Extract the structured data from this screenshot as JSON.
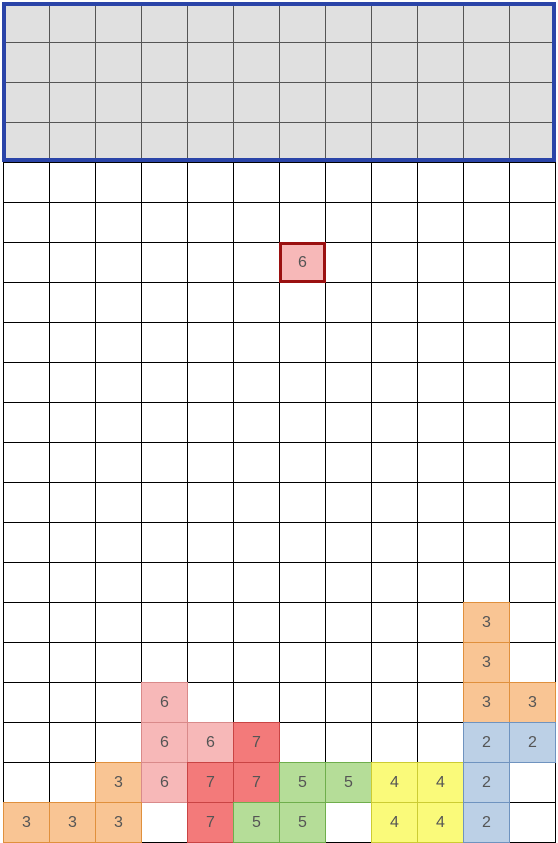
{
  "board": {
    "cols": 12,
    "rows": 21,
    "spawn_rows": 4,
    "colors": {
      "spawn_fill": "#e0e0e0",
      "spawn_border": "#2a44a8",
      "grid_line": "#000000",
      "active_border": "#9a1010"
    },
    "piece_colors": {
      "2": {
        "fill": "#bcd0e6",
        "border": "#6f93bf"
      },
      "3": {
        "fill": "#f9c594",
        "border": "#e0903d"
      },
      "4": {
        "fill": "#fafa7a",
        "border": "#cccc33"
      },
      "5": {
        "fill": "#b5dd98",
        "border": "#6fae4c"
      },
      "6": {
        "fill": "#f7b8b8",
        "border": "#d98a8a"
      },
      "7": {
        "fill": "#f37a7a",
        "border": "#c94444"
      }
    },
    "active_piece": {
      "value": "6",
      "cells": [
        [
          6,
          6
        ]
      ]
    },
    "cells": [
      {
        "col": 10,
        "row": 15,
        "value": "3"
      },
      {
        "col": 10,
        "row": 16,
        "value": "3"
      },
      {
        "col": 10,
        "row": 17,
        "value": "3"
      },
      {
        "col": 11,
        "row": 17,
        "value": "3"
      },
      {
        "col": 3,
        "row": 17,
        "value": "6"
      },
      {
        "col": 3,
        "row": 18,
        "value": "6"
      },
      {
        "col": 4,
        "row": 18,
        "value": "6"
      },
      {
        "col": 5,
        "row": 18,
        "value": "7"
      },
      {
        "col": 10,
        "row": 18,
        "value": "2"
      },
      {
        "col": 11,
        "row": 18,
        "value": "2"
      },
      {
        "col": 2,
        "row": 19,
        "value": "3"
      },
      {
        "col": 3,
        "row": 19,
        "value": "6"
      },
      {
        "col": 4,
        "row": 19,
        "value": "7"
      },
      {
        "col": 5,
        "row": 19,
        "value": "7"
      },
      {
        "col": 6,
        "row": 19,
        "value": "5"
      },
      {
        "col": 7,
        "row": 19,
        "value": "5"
      },
      {
        "col": 8,
        "row": 19,
        "value": "4"
      },
      {
        "col": 9,
        "row": 19,
        "value": "4"
      },
      {
        "col": 10,
        "row": 19,
        "value": "2"
      },
      {
        "col": 0,
        "row": 20,
        "value": "3"
      },
      {
        "col": 1,
        "row": 20,
        "value": "3"
      },
      {
        "col": 2,
        "row": 20,
        "value": "3"
      },
      {
        "col": 4,
        "row": 20,
        "value": "7"
      },
      {
        "col": 5,
        "row": 20,
        "value": "5"
      },
      {
        "col": 6,
        "row": 20,
        "value": "5"
      },
      {
        "col": 8,
        "row": 20,
        "value": "4"
      },
      {
        "col": 9,
        "row": 20,
        "value": "4"
      },
      {
        "col": 10,
        "row": 20,
        "value": "2"
      }
    ]
  }
}
